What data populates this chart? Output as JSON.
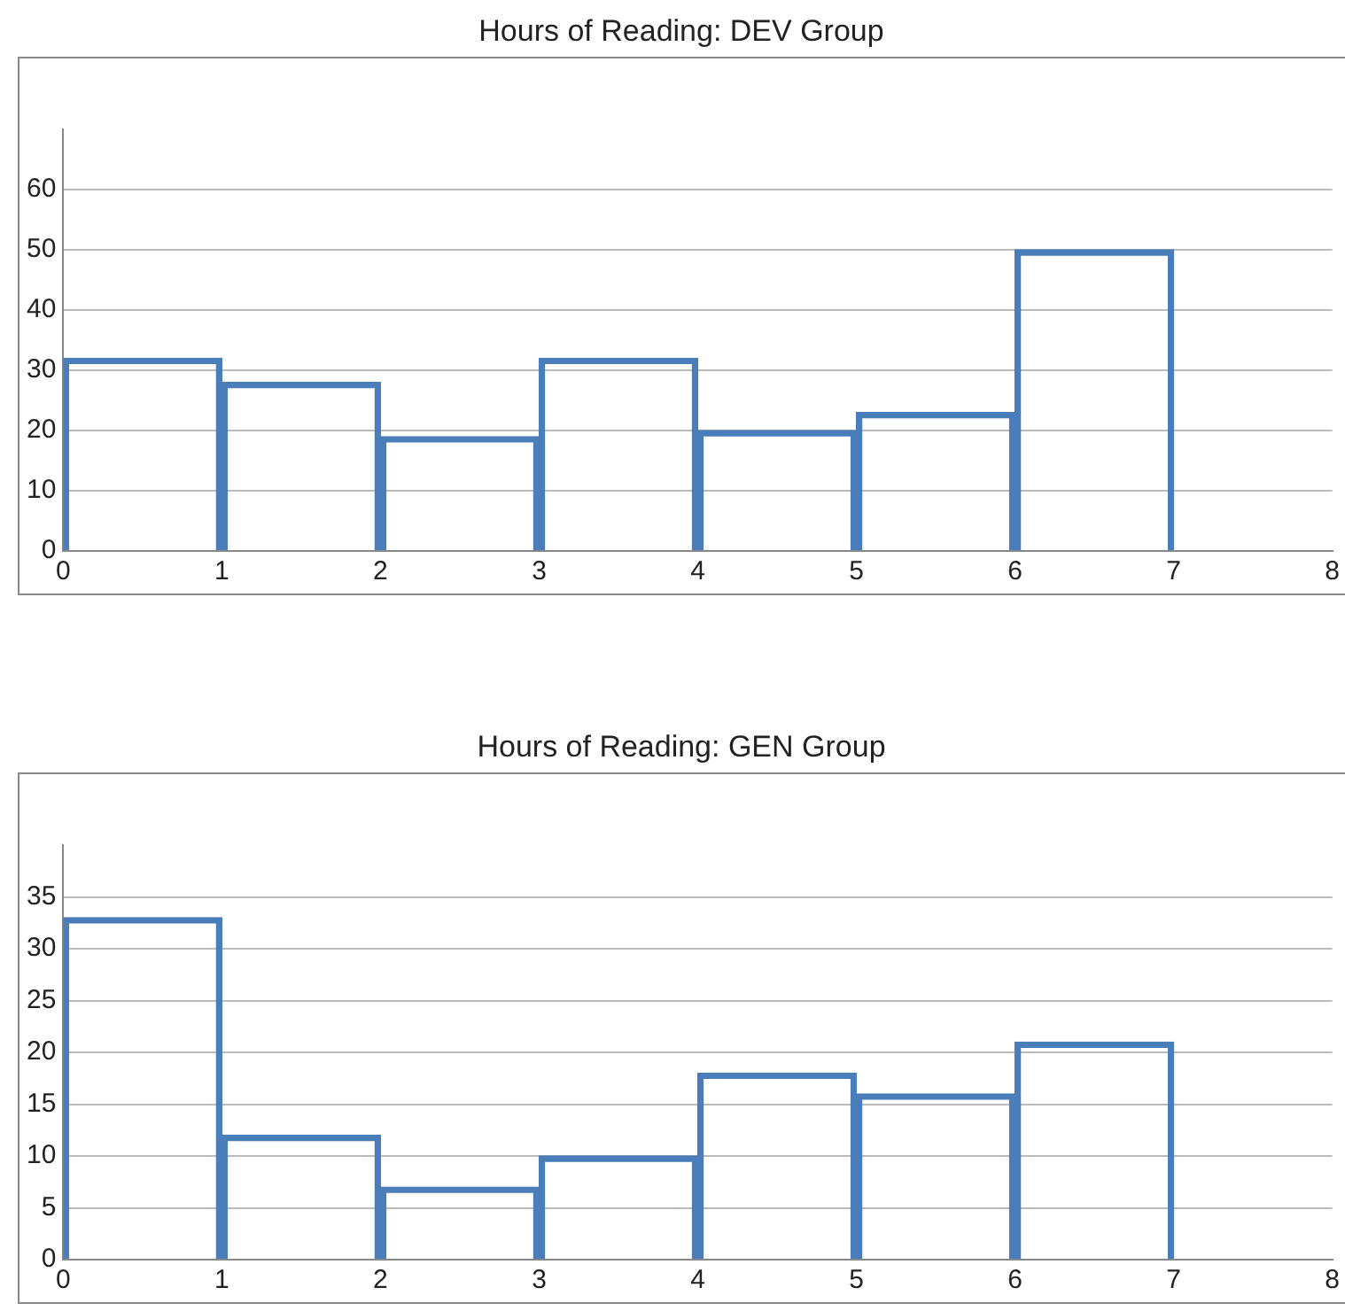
{
  "chart_data": [
    {
      "type": "histogram",
      "title": "Hours of Reading:  DEV Group",
      "bins": [
        0,
        1,
        2,
        3,
        4,
        5,
        6,
        7
      ],
      "values": [
        32,
        28,
        19,
        32,
        20,
        23,
        50
      ],
      "color": "#4a7ebb",
      "xlim": [
        0,
        8
      ],
      "xticks": [
        0,
        1,
        2,
        3,
        4,
        5,
        6,
        7,
        8
      ],
      "ylim": [
        0,
        70
      ],
      "yticks": [
        0,
        10,
        20,
        30,
        40,
        50,
        60
      ],
      "grid": "y"
    },
    {
      "type": "histogram",
      "title": "Hours of Reading:  GEN Group",
      "bins": [
        0,
        1,
        2,
        3,
        4,
        5,
        6,
        7
      ],
      "values": [
        33,
        12,
        7,
        10,
        18,
        16,
        21
      ],
      "color": "#4a7ebb",
      "xlim": [
        0,
        8
      ],
      "xticks": [
        0,
        1,
        2,
        3,
        4,
        5,
        6,
        7,
        8
      ],
      "ylim": [
        0,
        40
      ],
      "yticks": [
        0,
        5,
        10,
        15,
        20,
        25,
        30,
        35
      ],
      "grid": "y"
    }
  ]
}
